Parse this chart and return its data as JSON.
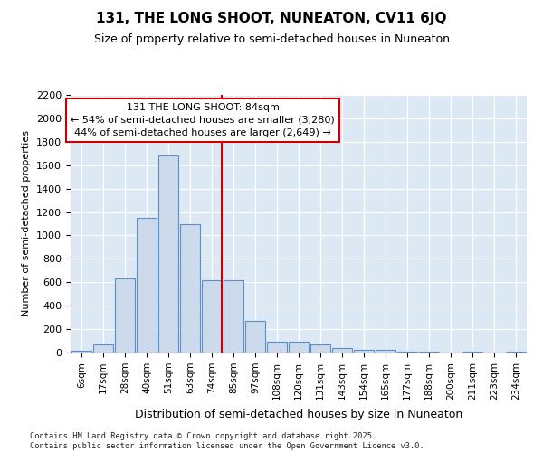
{
  "title": "131, THE LONG SHOOT, NUNEATON, CV11 6JQ",
  "subtitle": "Size of property relative to semi-detached houses in Nuneaton",
  "xlabel": "Distribution of semi-detached houses by size in Nuneaton",
  "ylabel": "Number of semi-detached properties",
  "footer_line1": "Contains HM Land Registry data © Crown copyright and database right 2025.",
  "footer_line2": "Contains public sector information licensed under the Open Government Licence v3.0.",
  "annotation_line1": "131 THE LONG SHOOT: 84sqm",
  "annotation_line2": "← 54% of semi-detached houses are smaller (3,280)",
  "annotation_line3": "44% of semi-detached houses are larger (2,649) →",
  "bar_color": "#ccdaec",
  "bar_edge_color": "#5b8fc9",
  "vline_color": "#cc0000",
  "bg_color": "#dce8f4",
  "categories": [
    "6sqm",
    "17sqm",
    "28sqm",
    "40sqm",
    "51sqm",
    "63sqm",
    "74sqm",
    "85sqm",
    "97sqm",
    "108sqm",
    "120sqm",
    "131sqm",
    "143sqm",
    "154sqm",
    "165sqm",
    "177sqm",
    "188sqm",
    "200sqm",
    "211sqm",
    "223sqm",
    "234sqm"
  ],
  "values": [
    15,
    70,
    630,
    1150,
    1680,
    1100,
    620,
    620,
    270,
    90,
    90,
    70,
    35,
    20,
    20,
    5,
    5,
    0,
    5,
    0,
    5
  ],
  "vline_index": 6.44,
  "ylim": [
    0,
    2200
  ],
  "yticks": [
    0,
    200,
    400,
    600,
    800,
    1000,
    1200,
    1400,
    1600,
    1800,
    2000,
    2200
  ]
}
